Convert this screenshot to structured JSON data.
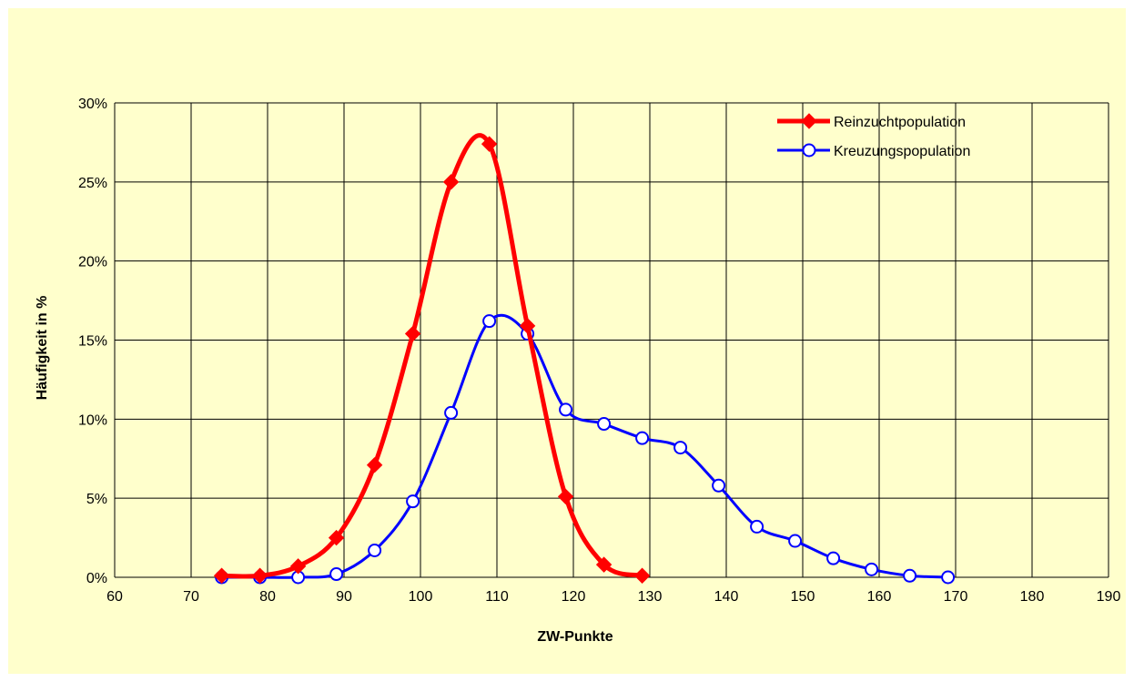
{
  "chart_data": {
    "type": "line",
    "title": "",
    "xlabel": "ZW-Punkte",
    "ylabel": "Häufigkeit in %",
    "xlim": [
      60,
      190
    ],
    "ylim": [
      0,
      30
    ],
    "x_ticks": [
      60,
      70,
      80,
      90,
      100,
      110,
      120,
      130,
      140,
      150,
      160,
      170,
      180,
      190
    ],
    "x_tick_labels": [
      "60",
      "70",
      "80",
      "90",
      "100",
      "110",
      "120",
      "130",
      "140",
      "150",
      "160",
      "170",
      "180",
      "190"
    ],
    "y_ticks": [
      0,
      5,
      10,
      15,
      20,
      25,
      30
    ],
    "y_tick_labels": [
      "0%",
      "5%",
      "10%",
      "15%",
      "20%",
      "25%",
      "30%"
    ],
    "grid": true,
    "legend_position": "top-right",
    "series": [
      {
        "name": "Reinzuchtpopulation",
        "color": "#ff0000",
        "marker": "diamond",
        "x": [
          74,
          79,
          84,
          89,
          94,
          99,
          104,
          109,
          114,
          119,
          124,
          129
        ],
        "values": [
          0.1,
          0.1,
          0.7,
          2.5,
          7.1,
          15.4,
          25.0,
          27.4,
          15.9,
          5.1,
          0.8,
          0.1
        ]
      },
      {
        "name": "Kreuzungspopulation",
        "color": "#0000ff",
        "marker": "circle",
        "x": [
          74,
          79,
          84,
          89,
          94,
          99,
          104,
          109,
          114,
          119,
          124,
          129,
          134,
          139,
          144,
          149,
          154,
          159,
          164,
          169
        ],
        "values": [
          0.0,
          0.0,
          0.0,
          0.2,
          1.7,
          4.8,
          10.4,
          16.2,
          15.4,
          10.6,
          9.7,
          8.8,
          8.2,
          5.8,
          3.2,
          2.3,
          1.2,
          0.5,
          0.1,
          0.0
        ]
      }
    ]
  }
}
